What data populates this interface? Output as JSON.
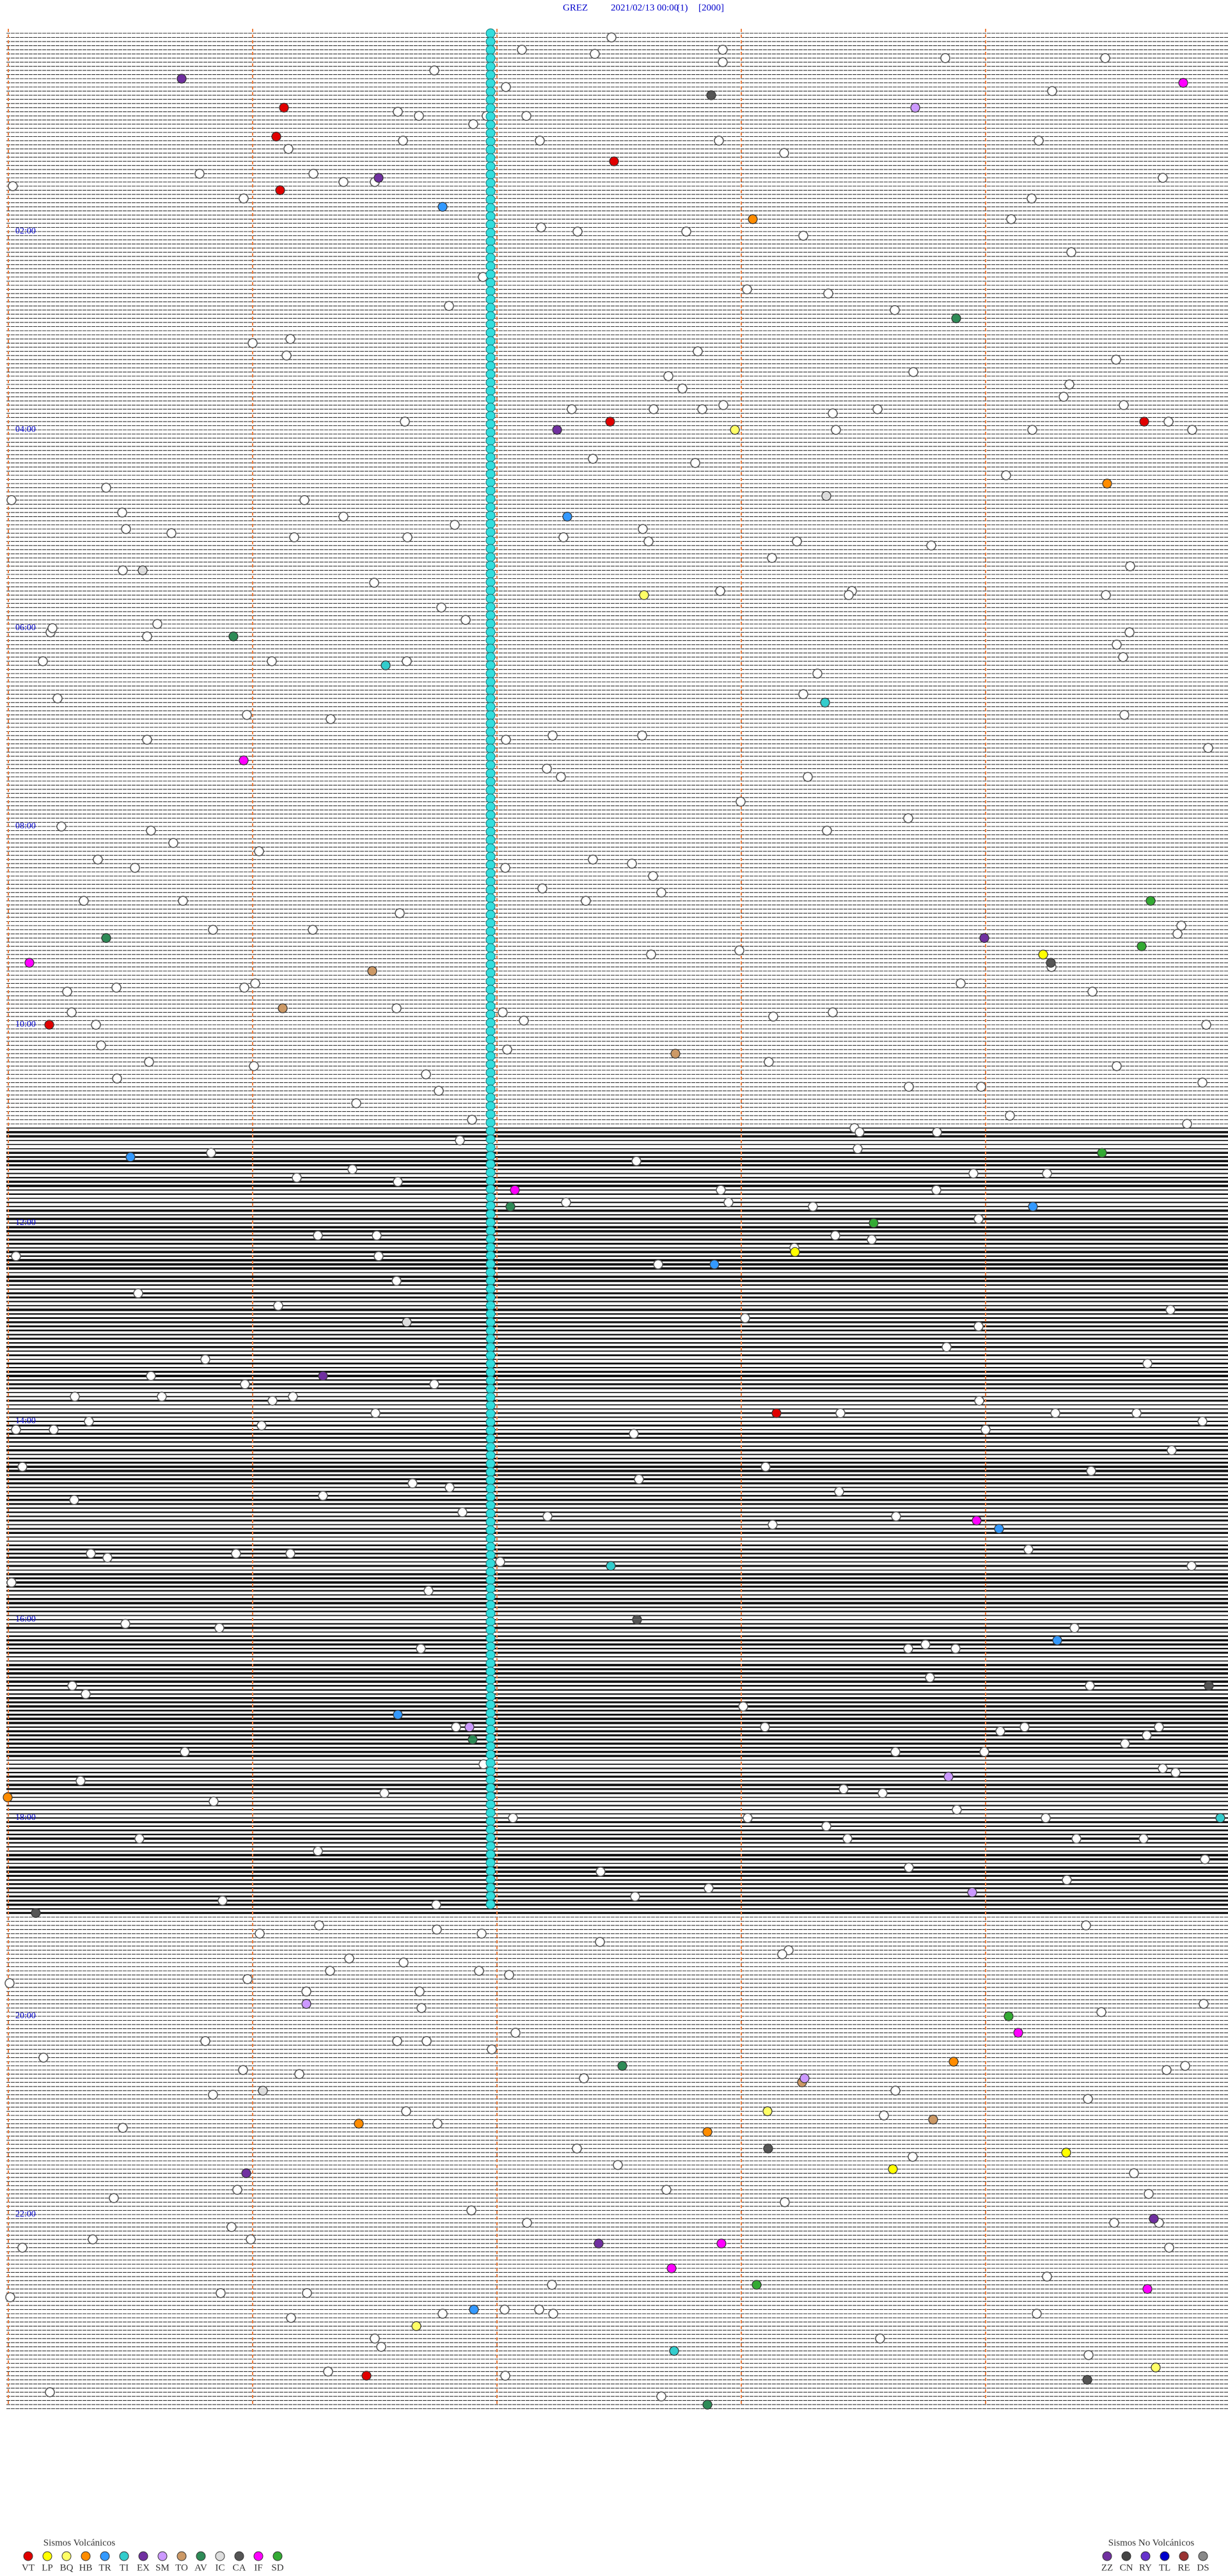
{
  "header": {
    "station": "GREZ",
    "datetime": "2021/02/13 00:00",
    "channel": "(1)",
    "scale": "[2000]"
  },
  "hour_labels": [
    "02:00",
    "04:00",
    "06:00",
    "08:00",
    "10:00",
    "12:00",
    "14:00",
    "16:00",
    "18:00",
    "20:00",
    "22:00"
  ],
  "legend": {
    "volcanic": {
      "title": "Sismos Volcánicos",
      "items": [
        {
          "code": "VT",
          "color": "#e00000"
        },
        {
          "code": "LP",
          "color": "#ffff00"
        },
        {
          "code": "BQ",
          "color": "#ffff66"
        },
        {
          "code": "HB",
          "color": "#ff8c00"
        },
        {
          "code": "TR",
          "color": "#3399ff"
        },
        {
          "code": "TI",
          "color": "#33cccc"
        },
        {
          "code": "EX",
          "color": "#7030a0"
        },
        {
          "code": "SM",
          "color": "#cc99ff"
        },
        {
          "code": "TO",
          "color": "#cc9966"
        },
        {
          "code": "AV",
          "color": "#2e8b57"
        },
        {
          "code": "IC",
          "color": "#dddddd"
        },
        {
          "code": "CA",
          "color": "#555555"
        },
        {
          "code": "IF",
          "color": "#ff00ff"
        },
        {
          "code": "SD",
          "color": "#33aa33"
        }
      ]
    },
    "non_volcanic": {
      "title": "Sismos No Volcánicos",
      "items": [
        {
          "code": "ZZ",
          "color": "#7030a0"
        },
        {
          "code": "CN",
          "color": "#444444"
        },
        {
          "code": "RY",
          "color": "#6633cc"
        },
        {
          "code": "TL",
          "color": "#0000cc"
        },
        {
          "code": "RE",
          "color": "#993333"
        },
        {
          "code": "DS",
          "color": "#888888"
        }
      ]
    }
  }
}
